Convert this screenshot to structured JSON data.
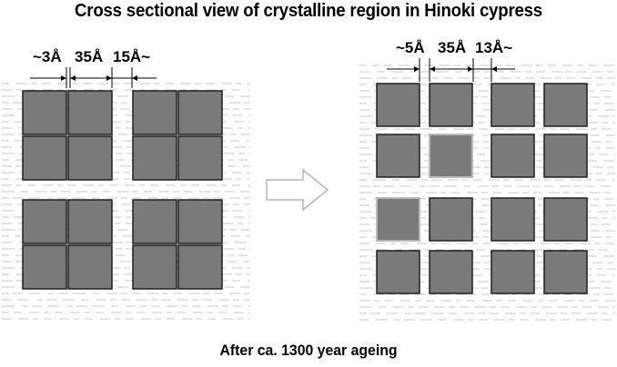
{
  "title": "Cross sectional view of crystalline region in Hinoki cypress",
  "caption": "After ca. 1300 year ageing",
  "left_panel": {
    "dimensions": [
      "~3Å",
      "35Å",
      "15Å~"
    ]
  },
  "right_panel": {
    "dimensions": [
      "~5Å",
      "35Å",
      "13Å~"
    ]
  },
  "arrow": "right-arrow-icon",
  "colors": {
    "crystal_fill": "#7a7a7a",
    "crystal_edge": "#1e1e1e",
    "degraded_edge": "#b9b9b9",
    "amorphous_lines": "#c9c9c9"
  }
}
